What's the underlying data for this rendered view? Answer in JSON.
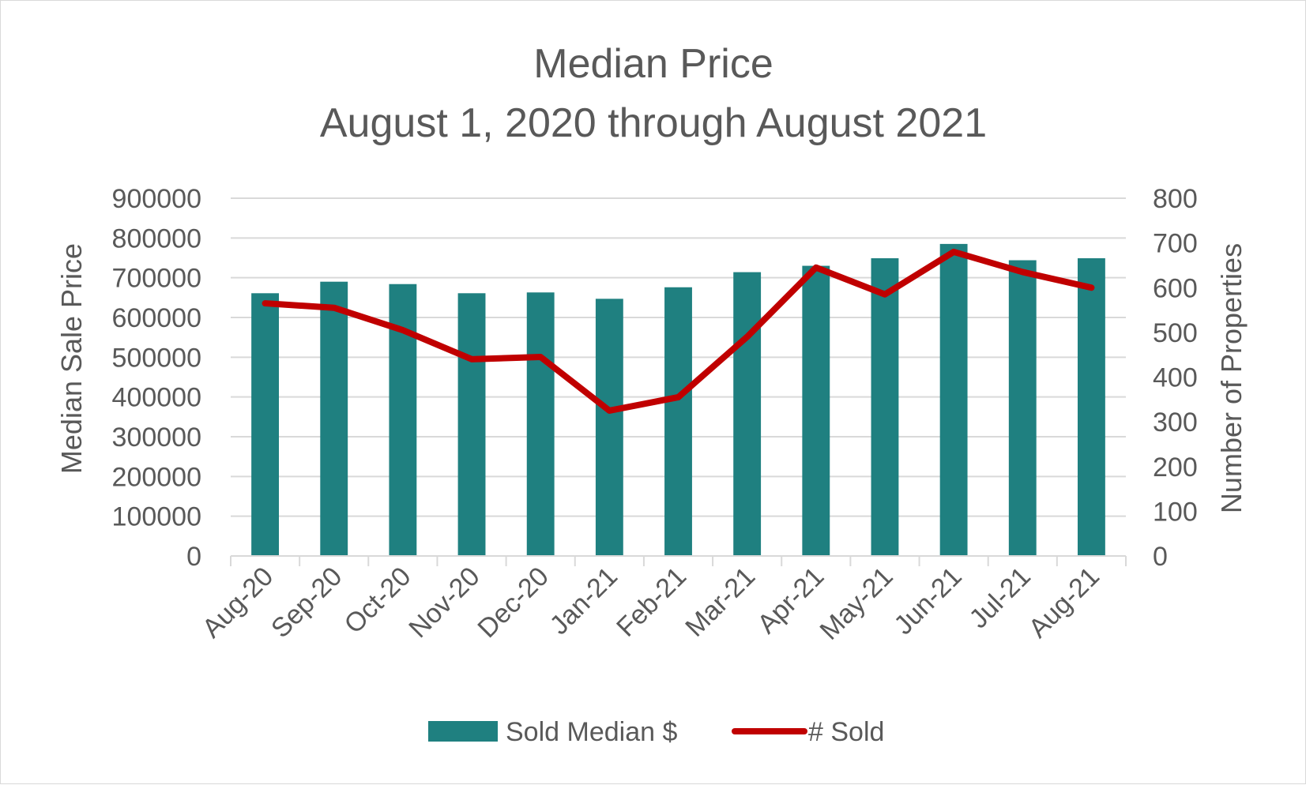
{
  "chart_data": {
    "type": "bar",
    "title": "Median Price",
    "subtitle": "August 1, 2020 through August 2021",
    "categories": [
      "Aug-20",
      "Sep-20",
      "Oct-20",
      "Nov-20",
      "Dec-20",
      "Jan-21",
      "Feb-21",
      "Mar-21",
      "Apr-21",
      "May-21",
      "Jun-21",
      "Jul-21",
      "Aug-21"
    ],
    "series": [
      {
        "name": "Sold Median $",
        "type": "bar",
        "axis": "left",
        "color": "#1f8080",
        "values": [
          661000,
          690000,
          684000,
          661000,
          663000,
          647000,
          676000,
          714000,
          730000,
          749000,
          785000,
          744000,
          749000
        ]
      },
      {
        "name": "# Sold",
        "type": "line",
        "axis": "right",
        "color": "#c00000",
        "values": [
          565,
          555,
          505,
          440,
          445,
          325,
          355,
          490,
          645,
          585,
          680,
          635,
          600
        ]
      }
    ],
    "ylabel": "Median Sale Price",
    "y2label": "Number of Properties",
    "ylim": [
      0,
      900000
    ],
    "y2lim": [
      0,
      800
    ],
    "yticks": [
      "0",
      "100000",
      "200000",
      "300000",
      "400000",
      "500000",
      "600000",
      "700000",
      "800000",
      "900000"
    ],
    "y2ticks": [
      "0",
      "100",
      "200",
      "300",
      "400",
      "500",
      "600",
      "700",
      "800"
    ],
    "grid": true,
    "legend_position": "bottom",
    "gridline_color": "#d9d9d9",
    "text_color": "#595959"
  }
}
